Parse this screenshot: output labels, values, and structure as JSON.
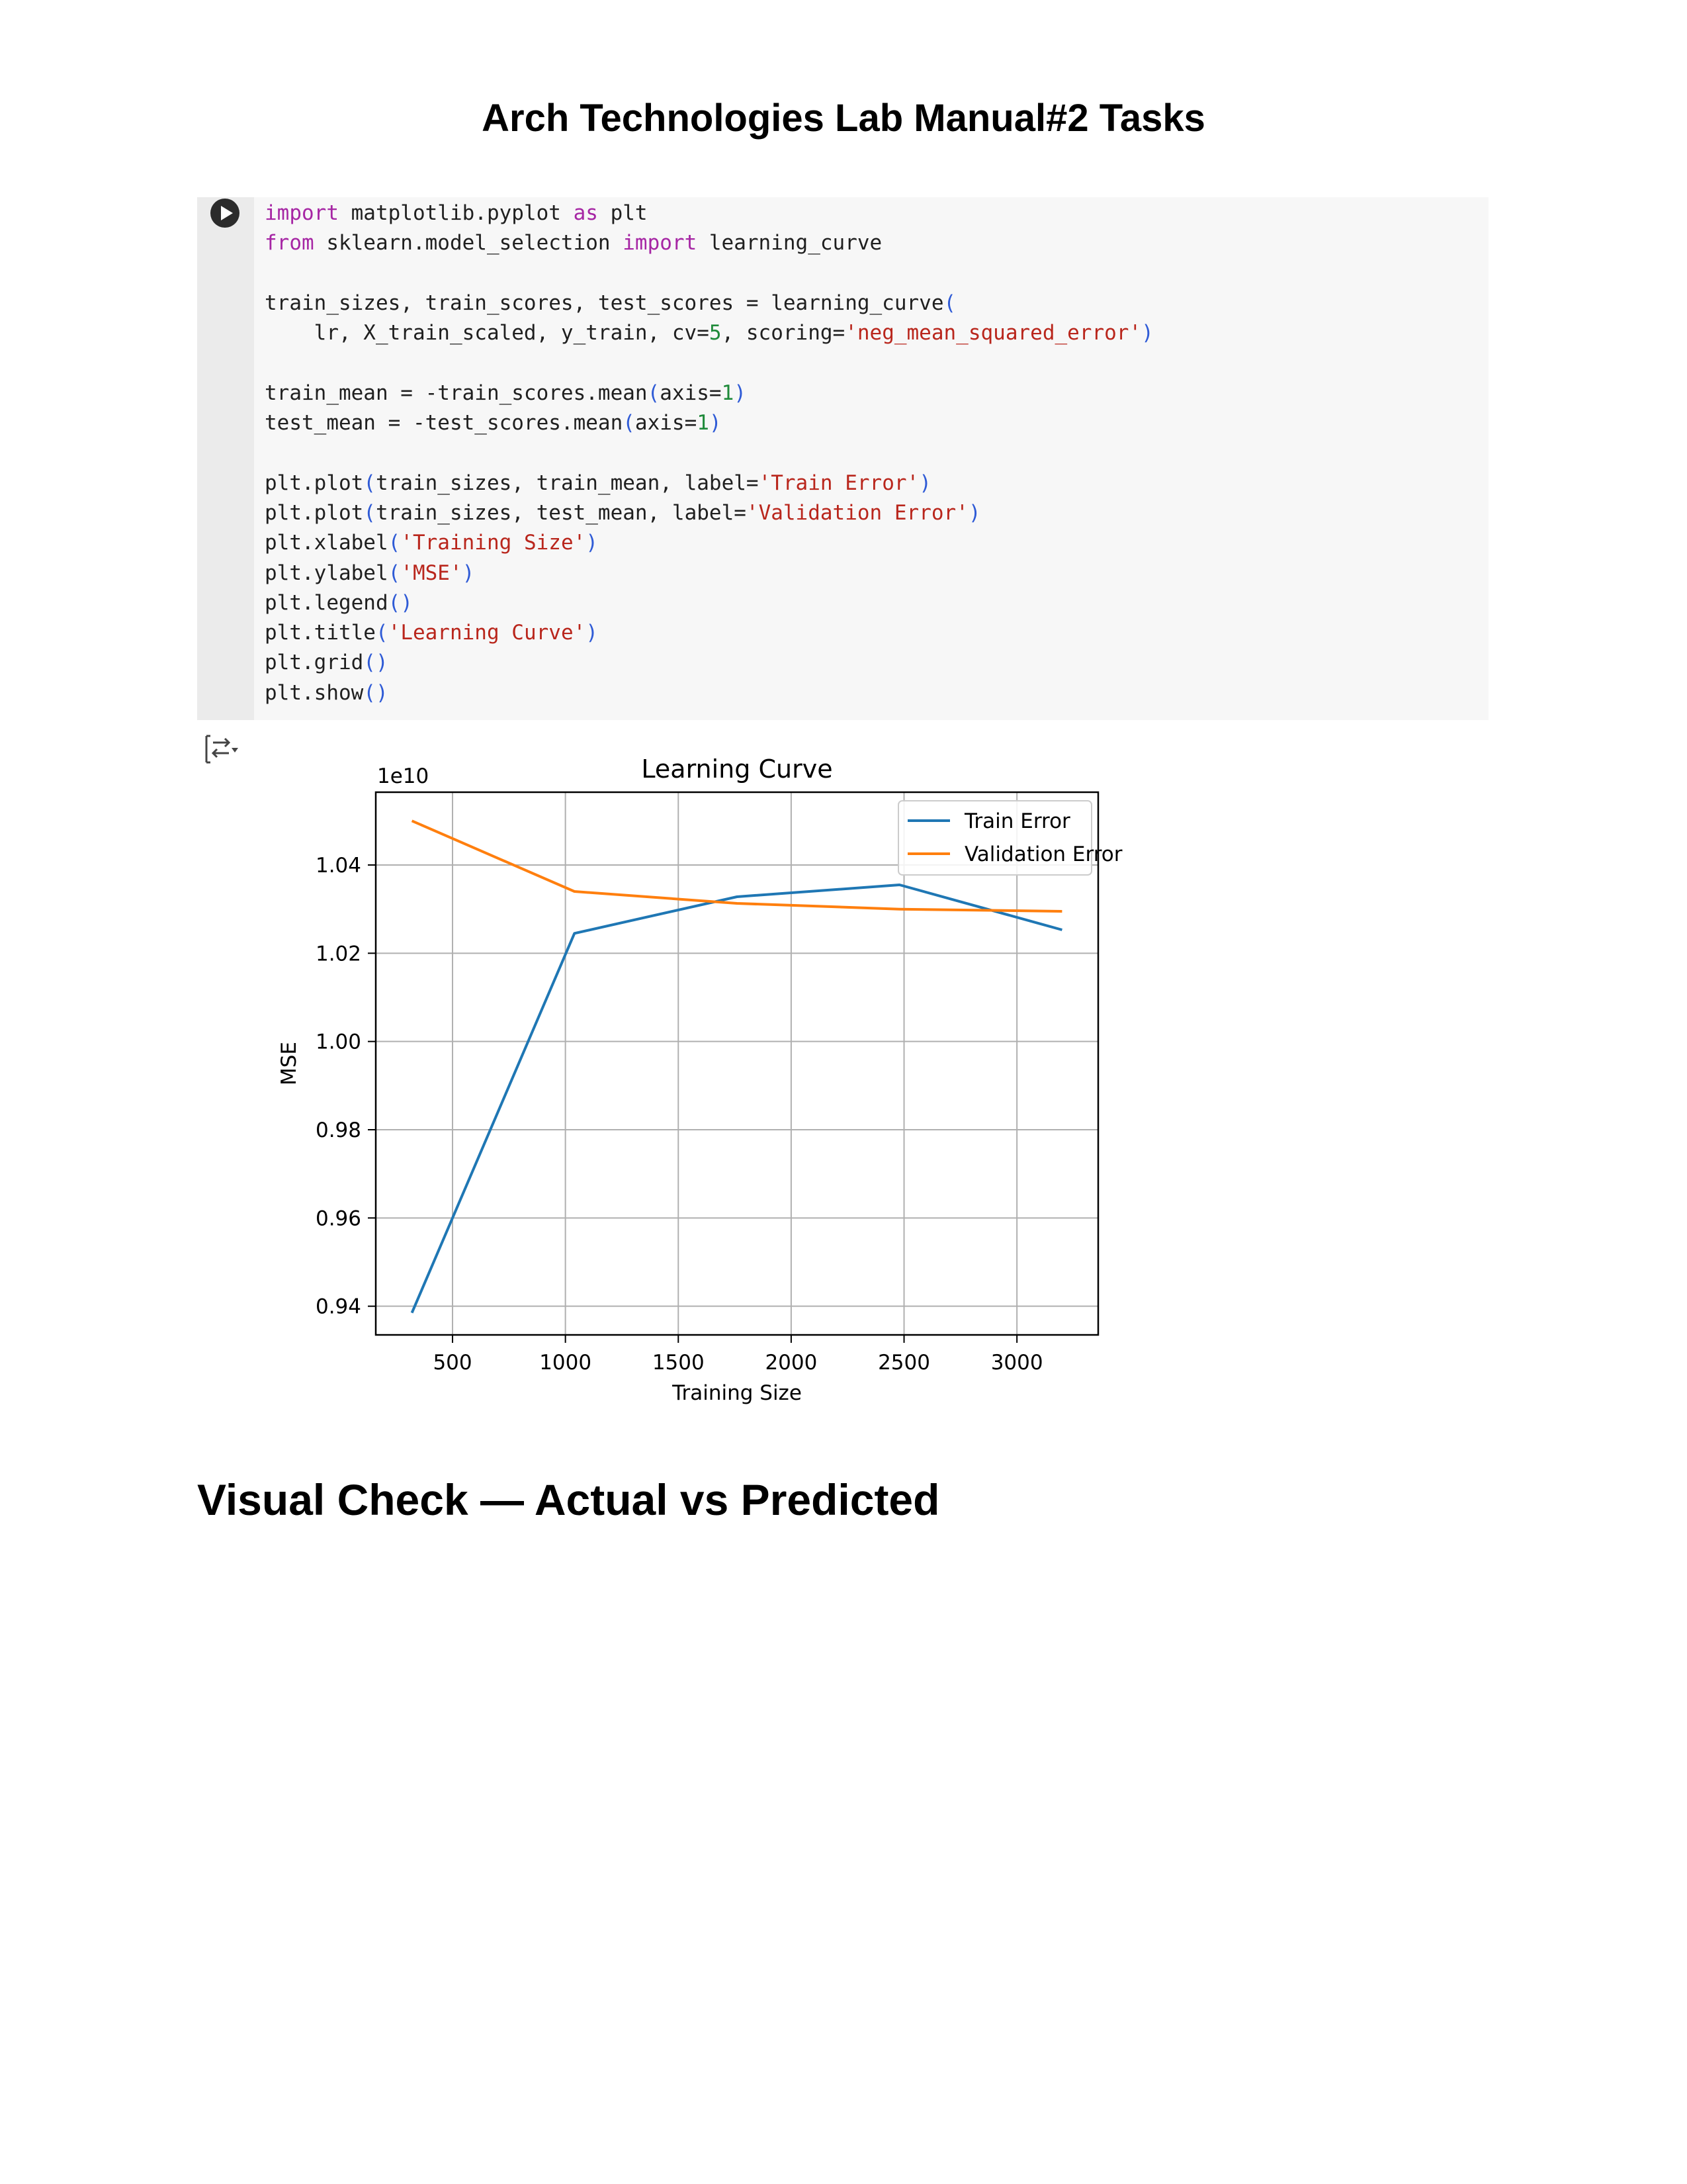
{
  "document": {
    "title": "Arch Technologies Lab Manual#2 Tasks",
    "section_heading": "Visual Check — Actual vs Predicted"
  },
  "code_cell": {
    "run_icon": "play-circle-icon",
    "output_icon": "output-toggle-icon",
    "lines": [
      [
        {
          "t": "import",
          "c": "kw"
        },
        {
          "t": " matplotlib.pyplot "
        },
        {
          "t": "as",
          "c": "kw"
        },
        {
          "t": " plt"
        }
      ],
      [
        {
          "t": "from",
          "c": "kw"
        },
        {
          "t": " sklearn.model_selection "
        },
        {
          "t": "import",
          "c": "kw"
        },
        {
          "t": " learning_curve"
        }
      ],
      [],
      [
        {
          "t": "train_sizes, train_scores, test_scores = learning_curve"
        },
        {
          "t": "(",
          "c": "par"
        }
      ],
      [
        {
          "t": "    lr, X_train_scaled, y_train, cv="
        },
        {
          "t": "5",
          "c": "num"
        },
        {
          "t": ", scoring="
        },
        {
          "t": "'neg_mean_squared_error'",
          "c": "str"
        },
        {
          "t": ")",
          "c": "par"
        }
      ],
      [],
      [
        {
          "t": "train_mean = -train_scores.mean"
        },
        {
          "t": "(",
          "c": "par"
        },
        {
          "t": "axis="
        },
        {
          "t": "1",
          "c": "num"
        },
        {
          "t": ")",
          "c": "par"
        }
      ],
      [
        {
          "t": "test_mean = -test_scores.mean"
        },
        {
          "t": "(",
          "c": "par"
        },
        {
          "t": "axis="
        },
        {
          "t": "1",
          "c": "num"
        },
        {
          "t": ")",
          "c": "par"
        }
      ],
      [],
      [
        {
          "t": "plt.plot"
        },
        {
          "t": "(",
          "c": "par"
        },
        {
          "t": "train_sizes, train_mean, label="
        },
        {
          "t": "'Train Error'",
          "c": "str"
        },
        {
          "t": ")",
          "c": "par"
        }
      ],
      [
        {
          "t": "plt.plot"
        },
        {
          "t": "(",
          "c": "par"
        },
        {
          "t": "train_sizes, test_mean, label="
        },
        {
          "t": "'Validation Error'",
          "c": "str"
        },
        {
          "t": ")",
          "c": "par"
        }
      ],
      [
        {
          "t": "plt.xlabel"
        },
        {
          "t": "(",
          "c": "par"
        },
        {
          "t": "'Training Size'",
          "c": "str"
        },
        {
          "t": ")",
          "c": "par"
        }
      ],
      [
        {
          "t": "plt.ylabel"
        },
        {
          "t": "(",
          "c": "par"
        },
        {
          "t": "'MSE'",
          "c": "str"
        },
        {
          "t": ")",
          "c": "par"
        }
      ],
      [
        {
          "t": "plt.legend"
        },
        {
          "t": "()",
          "c": "par"
        }
      ],
      [
        {
          "t": "plt.title"
        },
        {
          "t": "(",
          "c": "par"
        },
        {
          "t": "'Learning Curve'",
          "c": "str"
        },
        {
          "t": ")",
          "c": "par"
        }
      ],
      [
        {
          "t": "plt.grid"
        },
        {
          "t": "()",
          "c": "par"
        }
      ],
      [
        {
          "t": "plt.show"
        },
        {
          "t": "()",
          "c": "par"
        }
      ]
    ]
  },
  "chart_data": {
    "type": "line",
    "title": "Learning Curve",
    "xlabel": "Training Size",
    "ylabel": "MSE",
    "offset_label": "1e10",
    "xlim": [
      160,
      3360
    ],
    "ylim": [
      0.9335,
      1.0565
    ],
    "xticks": [
      500,
      1000,
      1500,
      2000,
      2500,
      3000
    ],
    "yticks": [
      0.94,
      0.96,
      0.98,
      1.0,
      1.02,
      1.04
    ],
    "ytick_labels": [
      "0.94",
      "0.96",
      "0.98",
      "1.00",
      "1.02",
      "1.04"
    ],
    "grid": true,
    "legend_position": "upper right",
    "x": [
      320,
      1040,
      1760,
      2480,
      3200
    ],
    "series": [
      {
        "name": "Train Error",
        "color": "#1f77b4",
        "values": [
          0.9385,
          1.0245,
          1.0328,
          1.0355,
          1.0253
        ]
      },
      {
        "name": "Validation Error",
        "color": "#ff7f0e",
        "values": [
          1.05,
          1.034,
          1.0313,
          1.03,
          1.0295
        ]
      }
    ]
  }
}
